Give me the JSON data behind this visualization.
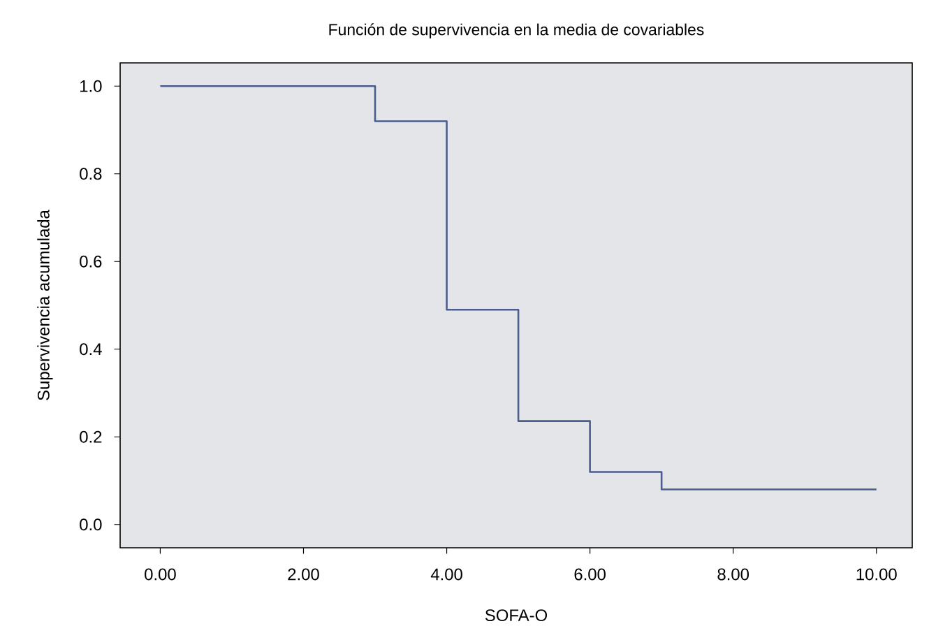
{
  "chart_data": {
    "type": "step",
    "title": "Función de supervivencia en la media de covariables",
    "xlabel": "SOFA-O",
    "ylabel": "Supervivencia acumulada",
    "series": [
      {
        "color": "#4a5d8c",
        "x": [
          0,
          3,
          4,
          5,
          6,
          7,
          10
        ],
        "values": [
          1.0,
          0.92,
          0.49,
          0.236,
          0.12,
          0.08,
          0.08
        ]
      }
    ],
    "xlim": [
      -0.56,
      10.5
    ],
    "ylim": [
      -0.053,
      1.053
    ],
    "xticks": [
      {
        "value": 0,
        "label": "0.00"
      },
      {
        "value": 2,
        "label": "2.00"
      },
      {
        "value": 4,
        "label": "4.00"
      },
      {
        "value": 6,
        "label": "6.00"
      },
      {
        "value": 8,
        "label": "8.00"
      },
      {
        "value": 10,
        "label": "10.00"
      }
    ],
    "yticks": [
      {
        "value": 0,
        "label": "0.0"
      },
      {
        "value": 0.2,
        "label": "0.2"
      },
      {
        "value": 0.4,
        "label": "0.4"
      },
      {
        "value": 0.6,
        "label": "0.6"
      },
      {
        "value": 0.8,
        "label": "0.8"
      },
      {
        "value": 1.0,
        "label": "1.0"
      }
    ],
    "marker": "none",
    "line_style": "solid"
  }
}
